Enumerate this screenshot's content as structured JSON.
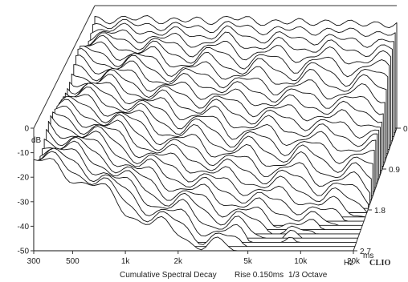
{
  "chart_data": {
    "type": "waterfall",
    "title": "Cumulative Spectral Decay",
    "subtitle": "Rise 0.150ms",
    "smoothing": "1/3 Octave",
    "brand": "CLIO",
    "x_axis": {
      "label": "Hz",
      "scale": "log",
      "range": [
        300,
        20000
      ],
      "ticks": [
        300,
        500,
        1000,
        2000,
        5000,
        10000,
        20000
      ],
      "tick_labels": [
        "300",
        "500",
        "1k",
        "2k",
        "5k",
        "10k",
        "20k"
      ]
    },
    "y_axis": {
      "label": "dB",
      "range": [
        -50,
        0
      ],
      "ticks": [
        0,
        -10,
        -20,
        -30,
        -40,
        -50
      ],
      "tick_labels": [
        "0",
        "-10",
        "-20",
        "-30",
        "-40",
        "-50"
      ]
    },
    "z_axis": {
      "label": "ms",
      "range": [
        0,
        2.7
      ],
      "ticks": [
        0,
        0.9,
        1.8,
        2.7
      ],
      "tick_labels": [
        "0.",
        "0.9",
        "1.8",
        "2.7"
      ]
    },
    "slices": 30,
    "time_step_ms": 0.0931,
    "freq_points": [
      300,
      400,
      500,
      700,
      1000,
      1400,
      2000,
      2800,
      4000,
      5600,
      8000,
      11000,
      16000,
      20000
    ],
    "first_slice_db": [
      -5.5,
      -5.5,
      -5.5,
      -5.5,
      -6.0,
      -6.5,
      -4.5,
      -7.0,
      -6.0,
      -7.5,
      -6.0,
      -8.0,
      -7.0,
      -7.5
    ],
    "decay_db_per_ms": [
      3,
      4,
      5,
      7,
      10,
      12,
      14,
      15,
      16,
      17,
      18,
      19,
      20,
      21
    ],
    "ripple_db": 3,
    "floor_db": -50
  }
}
